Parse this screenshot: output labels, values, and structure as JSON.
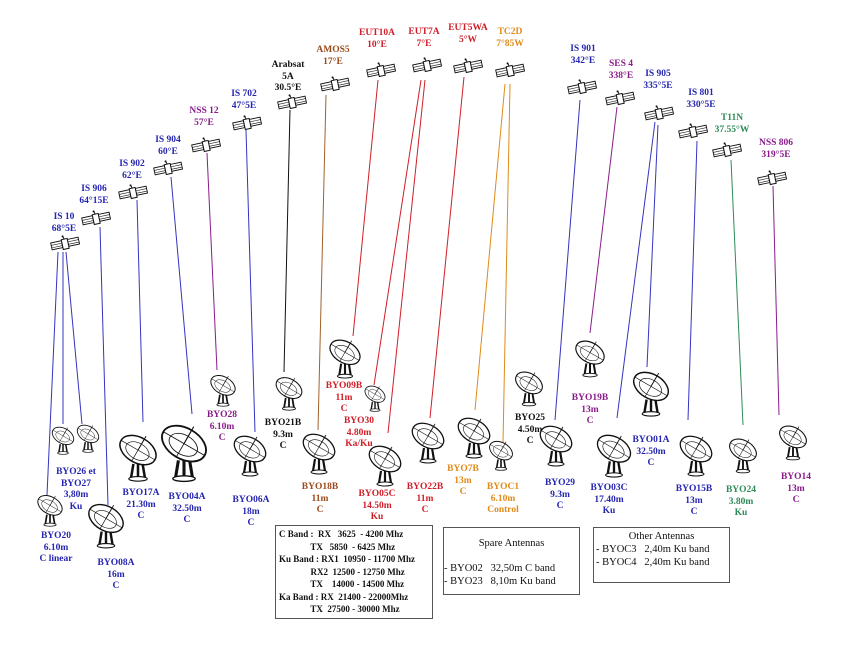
{
  "satellites": [
    {
      "name": "IS 10",
      "pos": "68°5E",
      "color": "#2626b0"
    },
    {
      "name": "IS 906",
      "pos": "64°15E",
      "color": "#2626b0"
    },
    {
      "name": "IS 902",
      "pos": "62°E",
      "color": "#2626b0"
    },
    {
      "name": "IS 904",
      "pos": "60°E",
      "color": "#2626b0"
    },
    {
      "name": "NSS 12",
      "pos": "57°E",
      "color": "#8a1c8a"
    },
    {
      "name": "IS 702",
      "pos": "47°5E",
      "color": "#2626b0"
    },
    {
      "name": "Arabsat",
      "name2": "5A",
      "pos": "30.5°E",
      "color": "#111111"
    },
    {
      "name": "AMOS5",
      "pos": "17°E",
      "color": "#9a4a1a"
    },
    {
      "name": "EUT10A",
      "pos": "10°E",
      "color": "#d01e28"
    },
    {
      "name": "EUT7A",
      "pos": "7°E",
      "color": "#d01e28"
    },
    {
      "name": "EUT5WA",
      "pos": "5°W",
      "color": "#d01e28"
    },
    {
      "name": "TC2D",
      "pos": "7°85W",
      "color": "#e08a1a"
    },
    {
      "name": "IS 901",
      "pos": "342°E",
      "color": "#2626b0"
    },
    {
      "name": "SES 4",
      "pos": "338°E",
      "color": "#8a1c8a"
    },
    {
      "name": "IS 905",
      "pos": "335°5E",
      "color": "#2626b0"
    },
    {
      "name": "IS 801",
      "pos": "330°5E",
      "color": "#2626b0"
    },
    {
      "name": "T11N",
      "pos": "37.55°W",
      "color": "#2e8b57"
    },
    {
      "name": "NSS 806",
      "pos": "319°5E",
      "color": "#8a1c8a"
    }
  ],
  "antennas": [
    {
      "name": "BYO20",
      "size": "6.10m",
      "band": "C linear"
    },
    {
      "name": "BYO26 et",
      "name2": "BYO27",
      "size": "3,80m",
      "band": "Ku"
    },
    {
      "name": "BYO08A",
      "size": "16m",
      "band": "C"
    },
    {
      "name": "BYO17A",
      "size": "21.30m",
      "band": "C"
    },
    {
      "name": "BYO04A",
      "size": "32.50m",
      "band": "C"
    },
    {
      "name": "BYO28",
      "size": "6.10m",
      "band": "C"
    },
    {
      "name": "BYO06A",
      "size": "18m",
      "band": "C"
    },
    {
      "name": "BYO21B",
      "size": "9.3m",
      "band": "C"
    },
    {
      "name": "BYO18B",
      "size": "11m",
      "band": "C"
    },
    {
      "name": "BYO09B",
      "size": "11m",
      "band": "C"
    },
    {
      "name": "BYO30",
      "size": "4.80m",
      "band": "Ka/Ku"
    },
    {
      "name": "BYO05C",
      "size": "14.50m",
      "band": "Ku"
    },
    {
      "name": "BYO22B",
      "size": "11m",
      "band": "C"
    },
    {
      "name": "BYO7B",
      "size": "13m",
      "band": "C"
    },
    {
      "name": "BYOC1",
      "size": "6.10m",
      "band": "Control"
    },
    {
      "name": "BYO25",
      "size": "4.50m",
      "band": "C"
    },
    {
      "name": "BYO29",
      "size": "9.3m",
      "band": "C"
    },
    {
      "name": "BYO19B",
      "size": "13m",
      "band": "C"
    },
    {
      "name": "BYO03C",
      "size": "17.40m",
      "band": "Ku"
    },
    {
      "name": "BYO01A",
      "size": "32.50m",
      "band": "C"
    },
    {
      "name": "BYO15B",
      "size": "13m",
      "band": "C"
    },
    {
      "name": "BYO24",
      "size": "3.80m",
      "band": "Ku"
    },
    {
      "name": "BYO14",
      "size": "13m",
      "band": "C"
    }
  ],
  "frequencies": [
    "C Band :  RX   3625  - 4200 Mhz",
    "              TX   5850  - 6425 Mhz",
    "Ku Band : RX1  10950 - 11700 Mhz",
    "              RX2  12500 - 12750 Mhz",
    "              TX    14000 - 14500 Mhz",
    "Ka Band : RX  21400 - 22000Mhz",
    "              TX  27500 - 30000 Mhz"
  ],
  "spare": {
    "title": "Spare Antennas",
    "items": [
      "- BYO02   32,50m C band",
      "- BYO23   8,10m Ku band"
    ]
  },
  "other": {
    "title": "Other Antennas",
    "items": [
      "- BYOC3   2,40m Ku band",
      "- BYOC4   2,40m Ku band"
    ]
  }
}
